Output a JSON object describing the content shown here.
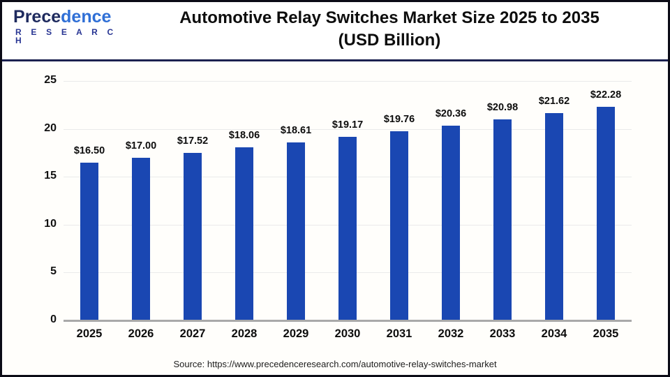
{
  "logo": {
    "brand_head": "P",
    "brand_dark": "rece",
    "brand_light": "dence",
    "sub_dark": "R E S E A R",
    "sub_light": " C H"
  },
  "header": {
    "title_line1": "Automotive Relay Switches Market Size 2025 to 2035",
    "title_line2": "(USD Billion)"
  },
  "chart_data": {
    "type": "bar",
    "title": "Automotive Relay Switches Market Size 2025 to 2035 (USD Billion)",
    "categories": [
      "2025",
      "2026",
      "2027",
      "2028",
      "2029",
      "2030",
      "2031",
      "2032",
      "2033",
      "2034",
      "2035"
    ],
    "values": [
      16.5,
      17.0,
      17.52,
      18.06,
      18.61,
      19.17,
      19.76,
      20.36,
      20.98,
      21.62,
      22.28
    ],
    "value_labels": [
      "$16.50",
      "$17.00",
      "$17.52",
      "$18.06",
      "$18.61",
      "$19.17",
      "$19.76",
      "$20.36",
      "$20.98",
      "$21.62",
      "$22.28"
    ],
    "xlabel": "",
    "ylabel": "",
    "ylim": [
      0,
      25
    ],
    "yticks": [
      0,
      5,
      10,
      15,
      20,
      25
    ],
    "grid": true,
    "legend": "none",
    "bar_color": "#1a47b2"
  },
  "footer": {
    "source": "Source: https://www.precedenceresearch.com/automotive-relay-switches-market"
  },
  "colors": {
    "bar": "#1a47b2",
    "divider": "#1b2150",
    "gridline": "#eaeaea",
    "axis_line": "#a9a9a9",
    "logo_dark": "#1e2a5e",
    "logo_light": "#2f6fd6"
  }
}
